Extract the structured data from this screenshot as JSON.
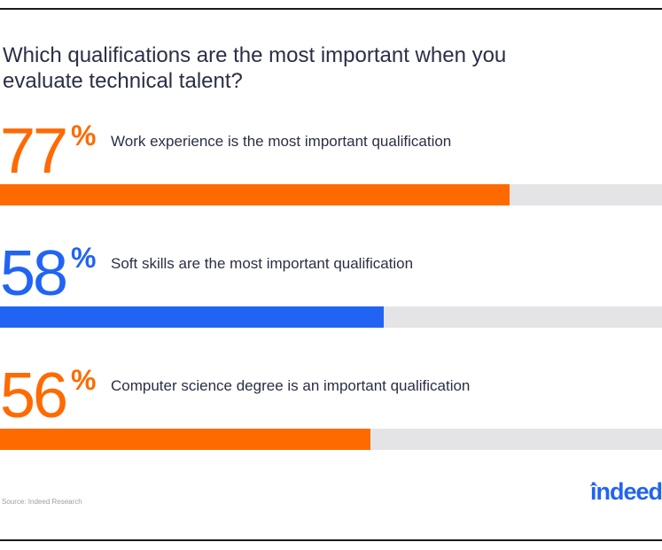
{
  "title": "Which qualifications are the most important when you evaluate technical talent?",
  "colors": {
    "orange": "#ff6a00",
    "blue": "#2164f3",
    "track": "#e4e4e6"
  },
  "chart_data": {
    "type": "bar",
    "orientation": "horizontal",
    "title": "Which qualifications are the most important when you evaluate technical talent?",
    "xlim": [
      0,
      100
    ],
    "stats": [
      {
        "value": 77,
        "value_label": "77",
        "unit": "%",
        "label": "Work experience is the most important qualification",
        "color": "#ff6a00"
      },
      {
        "value": 58,
        "value_label": "58",
        "unit": "%",
        "label": "Soft skills are the most important qualification",
        "color": "#2164f3"
      },
      {
        "value": 56,
        "value_label": "56",
        "unit": "%",
        "label": "Computer science degree is an important qualification",
        "color": "#ff6a00"
      }
    ]
  },
  "source": "Source: Indeed Research",
  "logo": {
    "text": "indeed",
    "icon": "indeed-logo"
  }
}
